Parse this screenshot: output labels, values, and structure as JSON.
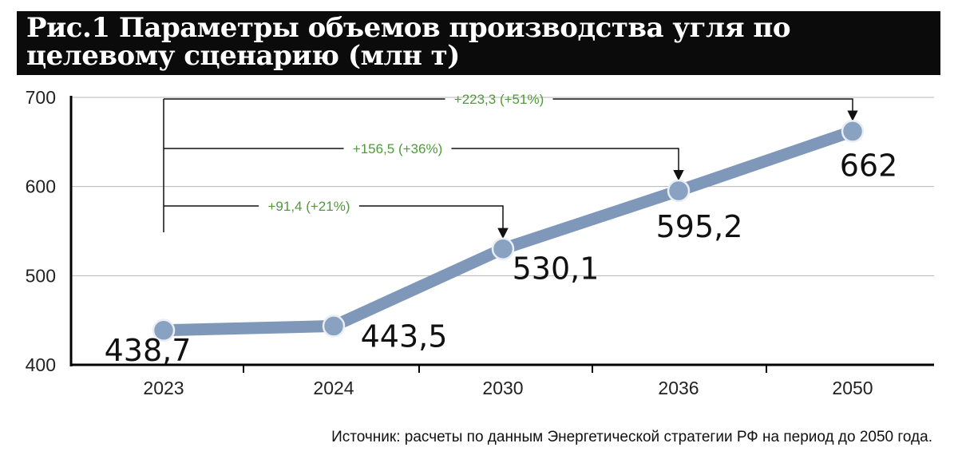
{
  "title": "Рис.1 Параметры объемов производства угля по целевому сценарию (млн т)",
  "source": "Источник: расчеты по данным Энергетической стратегии РФ на период до 2050 года.",
  "colors": {
    "line": "#7f98ba",
    "marker_fill": "#8aa2c2",
    "marker_stroke": "#e9eef5",
    "annotation": "#4f9a3a",
    "axis": "#000000",
    "grid": "#b5b5b5",
    "title_bg": "#0b0b0b"
  },
  "chart_data": {
    "type": "line",
    "categories": [
      "2023",
      "2024",
      "2030",
      "2036",
      "2050"
    ],
    "values": [
      438.7,
      443.5,
      530.1,
      595.2,
      662
    ],
    "value_labels": [
      "438,7",
      "443,5",
      "530,1",
      "595,2",
      "662"
    ],
    "ylim": [
      400,
      700
    ],
    "yticks": [
      400,
      500,
      600,
      700
    ],
    "grid": true,
    "annotations": [
      {
        "label": "+91,4 (+21%)",
        "target": "2030"
      },
      {
        "label": "+156,5 (+36%)",
        "target": "2036"
      },
      {
        "label": "+223,3 (+51%)",
        "target": "2050"
      }
    ]
  }
}
